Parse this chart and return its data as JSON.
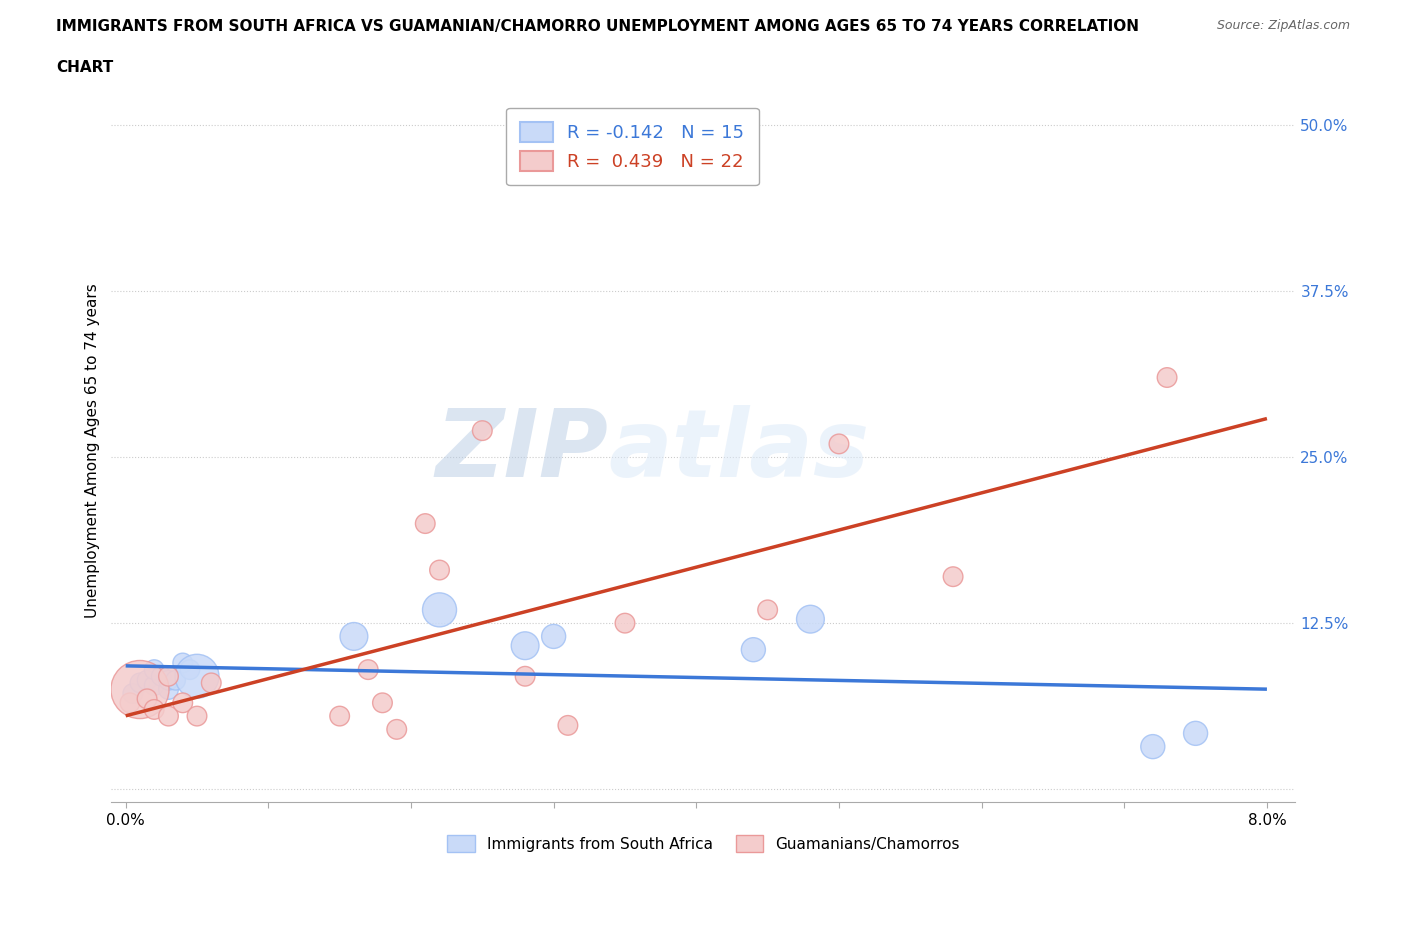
{
  "title_line1": "IMMIGRANTS FROM SOUTH AFRICA VS GUAMANIAN/CHAMORRO UNEMPLOYMENT AMONG AGES 65 TO 74 YEARS CORRELATION",
  "title_line2": "CHART",
  "source": "Source: ZipAtlas.com",
  "xlabel_ticks": [
    0.0,
    0.01,
    0.02,
    0.03,
    0.04,
    0.05,
    0.06,
    0.07,
    0.08
  ],
  "xlabel_labels": [
    "0.0%",
    "",
    "",
    "",
    "",
    "",
    "",
    "",
    "8.0%"
  ],
  "ylabel_ticks": [
    0.0,
    0.125,
    0.25,
    0.375,
    0.5
  ],
  "ylabel_labels": [
    "",
    "12.5%",
    "25.0%",
    "37.5%",
    "50.0%"
  ],
  "xlim": [
    -0.001,
    0.082
  ],
  "ylim": [
    -0.01,
    0.52
  ],
  "ylabel": "Unemployment Among Ages 65 to 74 years",
  "blue_color": "#a4c2f4",
  "pink_color": "#ea9999",
  "blue_fill_color": "#c9daf8",
  "pink_fill_color": "#f4cccc",
  "blue_line_color": "#3c78d8",
  "pink_line_color": "#cc4125",
  "legend_R_blue": "-0.142",
  "legend_N_blue": "15",
  "legend_R_pink": "0.439",
  "legend_N_pink": "22",
  "legend_label_blue": "Immigrants from South Africa",
  "legend_label_pink": "Guamanians/Chamorros",
  "blue_scatter_x": [
    0.0005,
    0.001,
    0.0015,
    0.002,
    0.002,
    0.0025,
    0.003,
    0.003,
    0.0035,
    0.004,
    0.0045,
    0.005,
    0.016,
    0.022,
    0.028,
    0.03,
    0.044,
    0.048,
    0.072,
    0.075
  ],
  "blue_scatter_y": [
    0.072,
    0.08,
    0.082,
    0.078,
    0.09,
    0.085,
    0.075,
    0.082,
    0.082,
    0.095,
    0.09,
    0.085,
    0.115,
    0.135,
    0.108,
    0.115,
    0.105,
    0.128,
    0.032,
    0.042
  ],
  "blue_scatter_size": [
    40,
    40,
    40,
    40,
    40,
    40,
    40,
    40,
    40,
    40,
    40,
    200,
    80,
    120,
    80,
    60,
    60,
    80,
    60,
    60
  ],
  "pink_scatter_x": [
    0.0003,
    0.001,
    0.0015,
    0.002,
    0.003,
    0.003,
    0.004,
    0.005,
    0.006,
    0.015,
    0.017,
    0.018,
    0.019,
    0.021,
    0.022,
    0.025,
    0.028,
    0.031,
    0.035,
    0.045,
    0.05,
    0.058,
    0.073
  ],
  "pink_scatter_y": [
    0.065,
    0.075,
    0.068,
    0.06,
    0.085,
    0.055,
    0.065,
    0.055,
    0.08,
    0.055,
    0.09,
    0.065,
    0.045,
    0.2,
    0.165,
    0.27,
    0.085,
    0.048,
    0.125,
    0.135,
    0.26,
    0.16,
    0.31
  ],
  "pink_scatter_size": [
    40,
    350,
    40,
    40,
    40,
    40,
    40,
    40,
    40,
    40,
    40,
    40,
    40,
    40,
    40,
    40,
    40,
    40,
    40,
    40,
    40,
    40,
    40
  ],
  "watermark_zip": "ZIP",
  "watermark_atlas": "atlas",
  "grid_color": "#cccccc",
  "grid_style": ":"
}
